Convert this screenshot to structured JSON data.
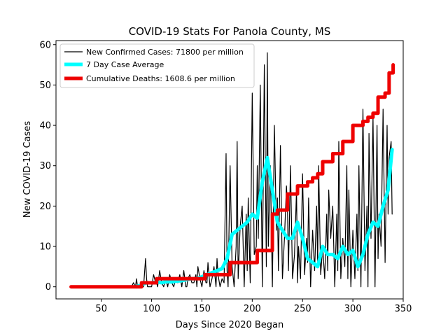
{
  "chart_data": {
    "type": "line",
    "title": "COVID-19 Stats For Panola County, MS",
    "xlabel": "Days Since 2020 Began",
    "ylabel": "New COVID-19 Cases",
    "xlim": [
      5,
      350
    ],
    "ylim": [
      -3,
      61
    ],
    "xticks": [
      50,
      100,
      150,
      200,
      250,
      300,
      350
    ],
    "yticks": [
      0,
      10,
      20,
      30,
      40,
      50,
      60
    ],
    "grid": false,
    "legend_position": "top-left",
    "series": [
      {
        "name": "New Confirmed Cases: 71800 per million",
        "color": "#000000",
        "style": "thin",
        "x": [
          80,
          82,
          84,
          85,
          86,
          88,
          90,
          92,
          94,
          95,
          96,
          98,
          100,
          102,
          104,
          105,
          106,
          108,
          110,
          112,
          114,
          115,
          116,
          118,
          120,
          122,
          124,
          125,
          126,
          128,
          130,
          132,
          134,
          135,
          136,
          138,
          140,
          142,
          144,
          145,
          146,
          148,
          150,
          152,
          154,
          155,
          156,
          158,
          160,
          162,
          164,
          165,
          166,
          168,
          170,
          172,
          174,
          175,
          176,
          178,
          180,
          182,
          184,
          185,
          186,
          188,
          190,
          192,
          194,
          195,
          196,
          198,
          200,
          202,
          204,
          205,
          206,
          208,
          210,
          212,
          214,
          215,
          216,
          218,
          220,
          222,
          224,
          225,
          226,
          228,
          230,
          232,
          234,
          235,
          236,
          238,
          240,
          242,
          244,
          245,
          246,
          248,
          250,
          252,
          254,
          255,
          256,
          258,
          260,
          262,
          264,
          265,
          266,
          268,
          270,
          272,
          274,
          275,
          276,
          278,
          280,
          282,
          284,
          285,
          286,
          288,
          290,
          292,
          294,
          295,
          296,
          298,
          300,
          302,
          304,
          305,
          306,
          308,
          310,
          312,
          314,
          315,
          316,
          318,
          320,
          322,
          324,
          325,
          326,
          328,
          330,
          332,
          334,
          335,
          336,
          338,
          339
        ],
        "values": [
          0,
          1,
          0,
          2,
          0,
          0,
          1,
          0,
          7,
          2,
          0,
          0,
          0,
          3,
          1,
          1,
          0,
          4,
          1,
          0,
          2,
          1,
          0,
          3,
          1,
          0,
          2,
          2,
          1,
          3,
          0,
          4,
          0,
          0,
          2,
          3,
          1,
          1,
          3,
          0,
          5,
          2,
          0,
          4,
          1,
          1,
          6,
          0,
          2,
          5,
          0,
          7,
          3,
          0,
          2,
          1,
          33,
          4,
          0,
          30,
          5,
          0,
          10,
          36,
          2,
          15,
          20,
          0,
          18,
          4,
          22,
          1,
          48,
          8,
          10,
          30,
          12,
          50,
          0,
          55,
          5,
          58,
          10,
          30,
          0,
          40,
          14,
          22,
          4,
          35,
          2,
          12,
          25,
          20,
          4,
          30,
          2,
          8,
          24,
          1,
          10,
          2,
          28,
          3,
          12,
          6,
          22,
          0,
          14,
          4,
          20,
          6,
          30,
          3,
          10,
          2,
          18,
          4,
          24,
          12,
          20,
          0,
          18,
          4,
          36,
          2,
          12,
          5,
          30,
          2,
          24,
          0,
          14,
          2,
          18,
          4,
          30,
          0,
          44,
          4,
          20,
          0,
          38,
          12,
          42,
          0,
          40,
          7,
          18,
          10,
          44,
          6,
          40,
          18,
          32,
          36,
          18
        ]
      },
      {
        "name": "7 Day Case Average",
        "color": "#00ffff",
        "style": "thick",
        "x": [
          85,
          90,
          95,
          100,
          105,
          110,
          115,
          120,
          125,
          130,
          135,
          140,
          145,
          150,
          155,
          160,
          165,
          170,
          175,
          180,
          185,
          190,
          195,
          200,
          205,
          210,
          215,
          220,
          225,
          230,
          235,
          240,
          245,
          250,
          255,
          260,
          265,
          270,
          275,
          280,
          285,
          290,
          295,
          300,
          305,
          310,
          315,
          320,
          325,
          330,
          335,
          339
        ],
        "values": [
          0,
          0.5,
          1,
          1,
          1.2,
          1,
          1.3,
          1.2,
          1.4,
          1.5,
          1.8,
          2,
          2,
          2.5,
          3,
          3.5,
          4,
          4.5,
          7,
          13,
          14,
          15,
          16,
          18,
          17,
          26,
          32,
          24,
          16,
          14,
          12,
          12,
          16,
          12,
          7,
          6,
          5,
          10,
          8,
          8,
          7,
          10,
          8,
          9,
          5,
          8,
          13,
          16,
          15,
          20,
          24,
          34
        ]
      },
      {
        "name": "Cumulative Deaths: 1608.6 per million",
        "color": "#ee0000",
        "style": "step",
        "x": [
          20,
          86,
          90,
          100,
          105,
          130,
          153,
          170,
          178,
          200,
          205,
          215,
          220,
          225,
          235,
          245,
          255,
          260,
          265,
          270,
          280,
          290,
          300,
          310,
          315,
          320,
          325,
          332,
          336,
          340
        ],
        "values": [
          0,
          0,
          1,
          1,
          2,
          2,
          3,
          3,
          6,
          6,
          9,
          9,
          18,
          19,
          23,
          25,
          26,
          27,
          28,
          31,
          33,
          36,
          40,
          41,
          42,
          43,
          47,
          48,
          53,
          55
        ]
      }
    ]
  }
}
